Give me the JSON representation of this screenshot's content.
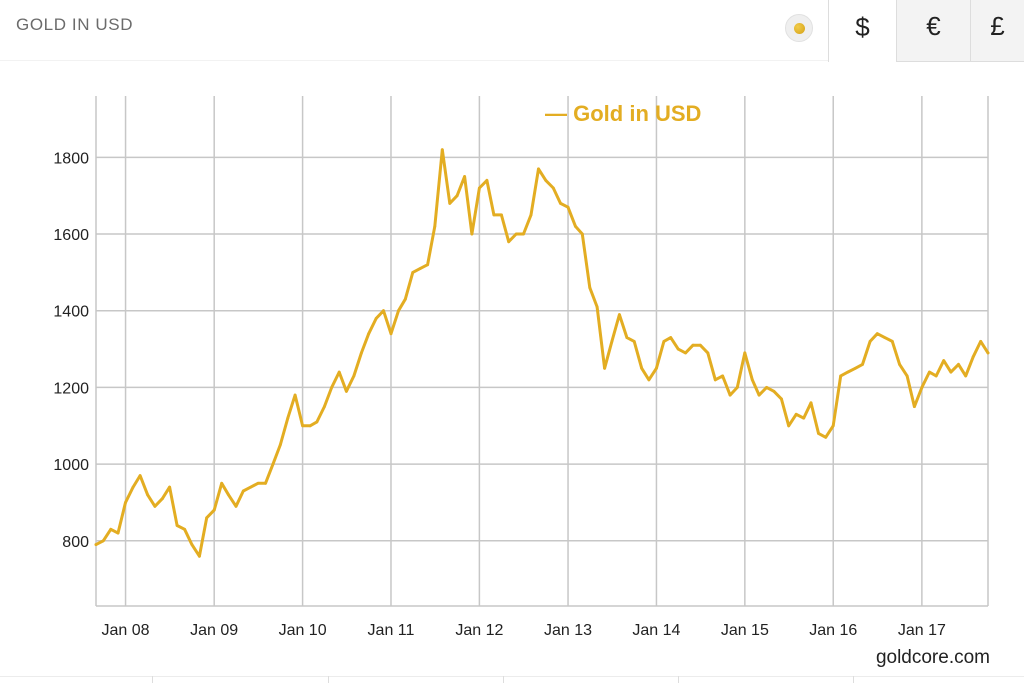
{
  "header": {
    "title": "GOLD IN USD",
    "currency_tabs": [
      {
        "label": "$",
        "icon": "dollar-icon",
        "selected": true
      },
      {
        "label": "€",
        "icon": "euro-icon",
        "selected": false
      },
      {
        "label": "£",
        "icon": "pound-icon",
        "selected": false
      }
    ]
  },
  "colors": {
    "accent": "#e3ad22",
    "gridline": "#c7c7c7",
    "text": "#222222"
  },
  "chart_data": {
    "type": "line",
    "title": "",
    "legend": "— Gold in USD",
    "legend_position": "top-center",
    "xlabel": "",
    "ylabel": "",
    "source": "goldcore.com",
    "x_range": [
      "2007-09-01",
      "2017-10-01"
    ],
    "ylim": [
      630,
      1960
    ],
    "x_ticks": [
      {
        "label": "Jan 08",
        "date": "2008-01-01"
      },
      {
        "label": "Jan 09",
        "date": "2009-01-01"
      },
      {
        "label": "Jan 10",
        "date": "2010-01-01"
      },
      {
        "label": "Jan 11",
        "date": "2011-01-01"
      },
      {
        "label": "Jan 12",
        "date": "2012-01-01"
      },
      {
        "label": "Jan 13",
        "date": "2013-01-01"
      },
      {
        "label": "Jan 14",
        "date": "2014-01-01"
      },
      {
        "label": "Jan 15",
        "date": "2015-01-01"
      },
      {
        "label": "Jan 16",
        "date": "2016-01-01"
      },
      {
        "label": "Jan 17",
        "date": "2017-01-01"
      }
    ],
    "y_ticks": [
      800,
      1000,
      1200,
      1400,
      1600,
      1800
    ],
    "grid": true,
    "series": [
      {
        "name": "Gold in USD",
        "color": "#e3ad22",
        "points": [
          [
            "2007-09-01",
            790
          ],
          [
            "2007-10-01",
            800
          ],
          [
            "2007-11-01",
            830
          ],
          [
            "2007-12-01",
            820
          ],
          [
            "2008-01-01",
            900
          ],
          [
            "2008-02-01",
            940
          ],
          [
            "2008-03-01",
            970
          ],
          [
            "2008-04-01",
            920
          ],
          [
            "2008-05-01",
            890
          ],
          [
            "2008-06-01",
            910
          ],
          [
            "2008-07-01",
            940
          ],
          [
            "2008-08-01",
            840
          ],
          [
            "2008-09-01",
            830
          ],
          [
            "2008-10-01",
            790
          ],
          [
            "2008-11-01",
            760
          ],
          [
            "2008-12-01",
            860
          ],
          [
            "2009-01-01",
            880
          ],
          [
            "2009-02-01",
            950
          ],
          [
            "2009-03-01",
            920
          ],
          [
            "2009-04-01",
            890
          ],
          [
            "2009-05-01",
            930
          ],
          [
            "2009-06-01",
            940
          ],
          [
            "2009-07-01",
            950
          ],
          [
            "2009-08-01",
            950
          ],
          [
            "2009-09-01",
            1000
          ],
          [
            "2009-10-01",
            1050
          ],
          [
            "2009-11-01",
            1120
          ],
          [
            "2009-12-01",
            1180
          ],
          [
            "2010-01-01",
            1100
          ],
          [
            "2010-02-01",
            1100
          ],
          [
            "2010-03-01",
            1110
          ],
          [
            "2010-04-01",
            1150
          ],
          [
            "2010-05-01",
            1200
          ],
          [
            "2010-06-01",
            1240
          ],
          [
            "2010-07-01",
            1190
          ],
          [
            "2010-08-01",
            1230
          ],
          [
            "2010-09-01",
            1290
          ],
          [
            "2010-10-01",
            1340
          ],
          [
            "2010-11-01",
            1380
          ],
          [
            "2010-12-01",
            1400
          ],
          [
            "2011-01-01",
            1340
          ],
          [
            "2011-02-01",
            1400
          ],
          [
            "2011-03-01",
            1430
          ],
          [
            "2011-04-01",
            1500
          ],
          [
            "2011-05-01",
            1510
          ],
          [
            "2011-06-01",
            1520
          ],
          [
            "2011-07-01",
            1620
          ],
          [
            "2011-08-01",
            1820
          ],
          [
            "2011-09-01",
            1680
          ],
          [
            "2011-10-01",
            1700
          ],
          [
            "2011-11-01",
            1750
          ],
          [
            "2011-12-01",
            1600
          ],
          [
            "2012-01-01",
            1720
          ],
          [
            "2012-02-01",
            1740
          ],
          [
            "2012-03-01",
            1650
          ],
          [
            "2012-04-01",
            1650
          ],
          [
            "2012-05-01",
            1580
          ],
          [
            "2012-06-01",
            1600
          ],
          [
            "2012-07-01",
            1600
          ],
          [
            "2012-08-01",
            1650
          ],
          [
            "2012-09-01",
            1770
          ],
          [
            "2012-10-01",
            1740
          ],
          [
            "2012-11-01",
            1720
          ],
          [
            "2012-12-01",
            1680
          ],
          [
            "2013-01-01",
            1670
          ],
          [
            "2013-02-01",
            1620
          ],
          [
            "2013-03-01",
            1600
          ],
          [
            "2013-04-01",
            1460
          ],
          [
            "2013-05-01",
            1410
          ],
          [
            "2013-06-01",
            1250
          ],
          [
            "2013-07-01",
            1320
          ],
          [
            "2013-08-01",
            1390
          ],
          [
            "2013-09-01",
            1330
          ],
          [
            "2013-10-01",
            1320
          ],
          [
            "2013-11-01",
            1250
          ],
          [
            "2013-12-01",
            1220
          ],
          [
            "2014-01-01",
            1250
          ],
          [
            "2014-02-01",
            1320
          ],
          [
            "2014-03-01",
            1330
          ],
          [
            "2014-04-01",
            1300
          ],
          [
            "2014-05-01",
            1290
          ],
          [
            "2014-06-01",
            1310
          ],
          [
            "2014-07-01",
            1310
          ],
          [
            "2014-08-01",
            1290
          ],
          [
            "2014-09-01",
            1220
          ],
          [
            "2014-10-01",
            1230
          ],
          [
            "2014-11-01",
            1180
          ],
          [
            "2014-12-01",
            1200
          ],
          [
            "2015-01-01",
            1290
          ],
          [
            "2015-02-01",
            1220
          ],
          [
            "2015-03-01",
            1180
          ],
          [
            "2015-04-01",
            1200
          ],
          [
            "2015-05-01",
            1190
          ],
          [
            "2015-06-01",
            1170
          ],
          [
            "2015-07-01",
            1100
          ],
          [
            "2015-08-01",
            1130
          ],
          [
            "2015-09-01",
            1120
          ],
          [
            "2015-10-01",
            1160
          ],
          [
            "2015-11-01",
            1080
          ],
          [
            "2015-12-01",
            1070
          ],
          [
            "2016-01-01",
            1100
          ],
          [
            "2016-02-01",
            1230
          ],
          [
            "2016-03-01",
            1240
          ],
          [
            "2016-04-01",
            1250
          ],
          [
            "2016-05-01",
            1260
          ],
          [
            "2016-06-01",
            1320
          ],
          [
            "2016-07-01",
            1340
          ],
          [
            "2016-08-01",
            1330
          ],
          [
            "2016-09-01",
            1320
          ],
          [
            "2016-10-01",
            1260
          ],
          [
            "2016-11-01",
            1230
          ],
          [
            "2016-12-01",
            1150
          ],
          [
            "2017-01-01",
            1200
          ],
          [
            "2017-02-01",
            1240
          ],
          [
            "2017-03-01",
            1230
          ],
          [
            "2017-04-01",
            1270
          ],
          [
            "2017-05-01",
            1240
          ],
          [
            "2017-06-01",
            1260
          ],
          [
            "2017-07-01",
            1230
          ],
          [
            "2017-08-01",
            1280
          ],
          [
            "2017-09-01",
            1320
          ],
          [
            "2017-10-01",
            1290
          ]
        ]
      }
    ]
  }
}
